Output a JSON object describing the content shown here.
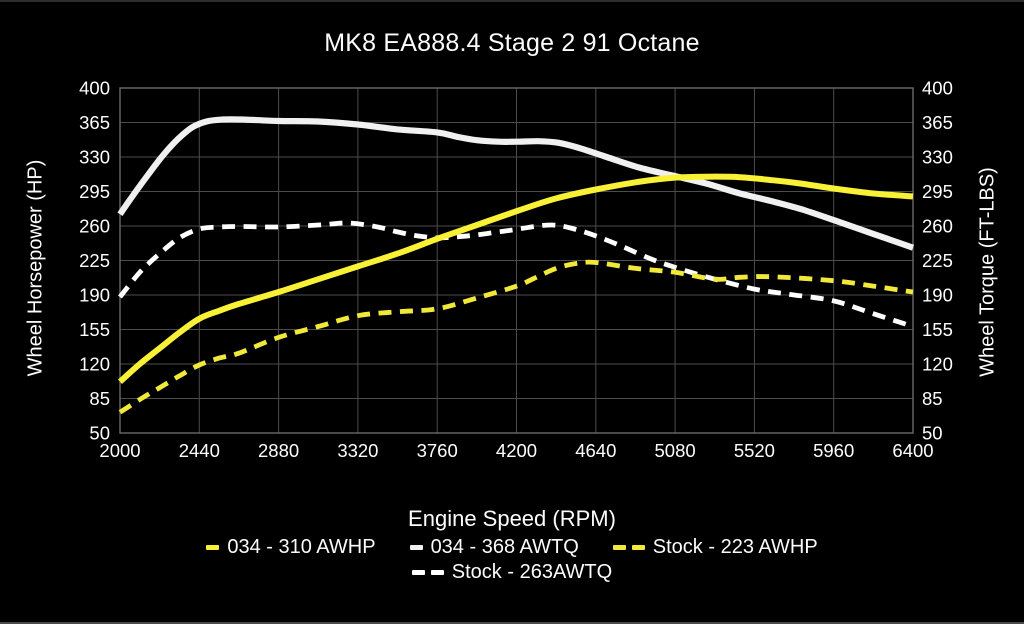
{
  "title": "MK8 EA888.4 Stage 2 91 Octane",
  "chart_data": {
    "type": "line",
    "title": "MK8 EA888.4 Stage 2 91 Octane",
    "xlabel": "Engine Speed (RPM)",
    "ylabel_left": "Wheel Horsepower (HP)",
    "ylabel_right": "Wheel Torque (FT-LBS)",
    "xlim": [
      2000,
      6400
    ],
    "ylim": [
      50,
      400
    ],
    "xticks": [
      2000,
      2440,
      2880,
      3320,
      3760,
      4200,
      4640,
      5080,
      5520,
      5960,
      6400
    ],
    "yticks": [
      50,
      85,
      120,
      155,
      190,
      225,
      260,
      295,
      330,
      365,
      400
    ],
    "grid": true,
    "legend_position": "bottom",
    "colors": {
      "background": "#000000",
      "grid": "#4c4c4c",
      "border": "#6a6a6a",
      "text": "#fdfdfd",
      "accent_yellow": "#f8f136",
      "accent_white": "#f0f0f0"
    },
    "series": [
      {
        "name": "034 - 310 AWHP",
        "color": "#f8f136",
        "style": "solid",
        "width": 6,
        "legend_dashes": 1,
        "points": [
          [
            2000,
            102
          ],
          [
            2110,
            120
          ],
          [
            2220,
            136
          ],
          [
            2330,
            152
          ],
          [
            2440,
            166
          ],
          [
            2550,
            174
          ],
          [
            2660,
            181
          ],
          [
            2880,
            193
          ],
          [
            3100,
            206
          ],
          [
            3320,
            219
          ],
          [
            3540,
            232
          ],
          [
            3760,
            247
          ],
          [
            3980,
            261
          ],
          [
            4200,
            275
          ],
          [
            4420,
            288
          ],
          [
            4640,
            297
          ],
          [
            4885,
            305
          ],
          [
            5070,
            309
          ],
          [
            5255,
            310
          ],
          [
            5440,
            309.5
          ],
          [
            5620,
            306.5
          ],
          [
            5780,
            303
          ],
          [
            5960,
            298
          ],
          [
            6180,
            293
          ],
          [
            6400,
            290
          ]
        ]
      },
      {
        "name": "034 - 368 AWTQ",
        "color": "#f0f0f0",
        "style": "solid",
        "width": 6.2,
        "legend_dashes": 1,
        "points": [
          [
            2000,
            272
          ],
          [
            2080,
            293
          ],
          [
            2160,
            313
          ],
          [
            2240,
            332
          ],
          [
            2320,
            348
          ],
          [
            2400,
            360
          ],
          [
            2480,
            366
          ],
          [
            2570,
            368
          ],
          [
            2680,
            368
          ],
          [
            2880,
            366.5
          ],
          [
            3100,
            366
          ],
          [
            3320,
            363
          ],
          [
            3540,
            358
          ],
          [
            3760,
            355
          ],
          [
            3870,
            350.5
          ],
          [
            3980,
            347
          ],
          [
            4100,
            345.5
          ],
          [
            4200,
            345.5
          ],
          [
            4320,
            346
          ],
          [
            4430,
            344.5
          ],
          [
            4550,
            339
          ],
          [
            4700,
            330
          ],
          [
            4885,
            319
          ],
          [
            5070,
            311
          ],
          [
            5255,
            303
          ],
          [
            5440,
            293
          ],
          [
            5620,
            285
          ],
          [
            5780,
            277
          ],
          [
            5960,
            266
          ],
          [
            6180,
            252
          ],
          [
            6400,
            238
          ]
        ]
      },
      {
        "name": "Stock - 223 AWHP",
        "color": "#f1e93a",
        "style": "dashed",
        "width": 4.8,
        "legend_dashes": 2,
        "points": [
          [
            2000,
            71
          ],
          [
            2110,
            84
          ],
          [
            2220,
            96
          ],
          [
            2330,
            108
          ],
          [
            2440,
            119
          ],
          [
            2550,
            126
          ],
          [
            2660,
            131
          ],
          [
            2880,
            147
          ],
          [
            3100,
            158
          ],
          [
            3320,
            169
          ],
          [
            3540,
            173
          ],
          [
            3760,
            176
          ],
          [
            3980,
            187
          ],
          [
            4200,
            199
          ],
          [
            4310,
            208
          ],
          [
            4420,
            217
          ],
          [
            4530,
            222
          ],
          [
            4640,
            223
          ],
          [
            4860,
            217
          ],
          [
            5080,
            213
          ],
          [
            5300,
            206
          ],
          [
            5440,
            208
          ],
          [
            5620,
            208.5
          ],
          [
            5960,
            204.5
          ],
          [
            6180,
            199
          ],
          [
            6400,
            193
          ]
        ]
      },
      {
        "name": "Stock - 263AWTQ",
        "color": "#ffffff",
        "style": "dashed",
        "width": 4.8,
        "legend_dashes": 2,
        "points": [
          [
            2000,
            188
          ],
          [
            2110,
            213
          ],
          [
            2220,
            232
          ],
          [
            2330,
            248
          ],
          [
            2440,
            257
          ],
          [
            2550,
            259
          ],
          [
            2660,
            259.5
          ],
          [
            2880,
            259
          ],
          [
            3100,
            261
          ],
          [
            3270,
            263
          ],
          [
            3430,
            259
          ],
          [
            3540,
            254
          ],
          [
            3650,
            250
          ],
          [
            3760,
            248
          ],
          [
            3870,
            249
          ],
          [
            3980,
            251
          ],
          [
            4100,
            254
          ],
          [
            4200,
            256.5
          ],
          [
            4300,
            259.5
          ],
          [
            4400,
            261
          ],
          [
            4500,
            258
          ],
          [
            4640,
            250
          ],
          [
            4790,
            239
          ],
          [
            4940,
            227
          ],
          [
            5080,
            218
          ],
          [
            5300,
            206
          ],
          [
            5520,
            196
          ],
          [
            5700,
            191
          ],
          [
            5960,
            184
          ],
          [
            6180,
            171
          ],
          [
            6400,
            158
          ]
        ]
      }
    ]
  }
}
